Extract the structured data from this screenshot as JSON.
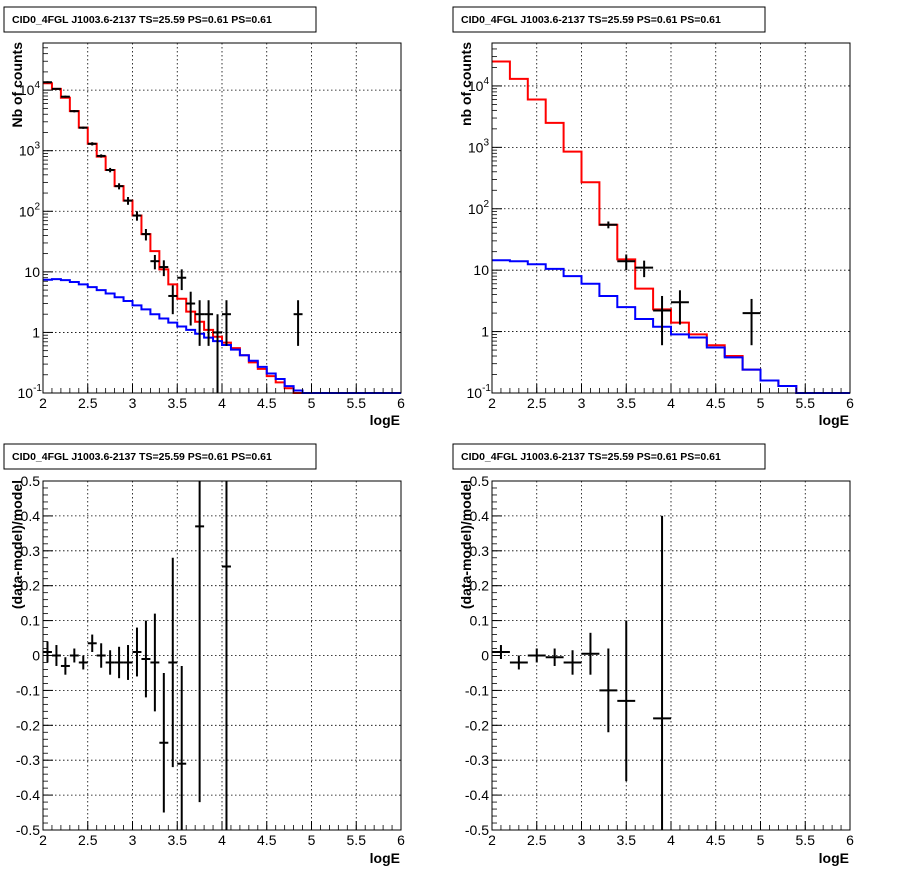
{
  "chart_data": [
    {
      "type": "histogram",
      "title": "CID0_4FGL J1003.6-2137 TS=25.59 PS=0.61 PS=0.61",
      "xlabel": "logE",
      "ylabel": "Nb of counts",
      "xlim": [
        2,
        6
      ],
      "ylim": [
        0.1,
        60000
      ],
      "log_y": true,
      "grid": true,
      "x_ticks": [
        "2",
        "2.5",
        "3",
        "3.5",
        "4",
        "4.5",
        "5",
        "5.5",
        "6"
      ],
      "y_ticks": [
        "10^-1",
        "1",
        "10",
        "10^2",
        "10^3",
        "10^4"
      ],
      "bin_edges": [
        2.0,
        2.1,
        2.2,
        2.3,
        2.4,
        2.5,
        2.6,
        2.7,
        2.8,
        2.9,
        3.0,
        3.1,
        3.2,
        3.3,
        3.4,
        3.5,
        3.6,
        3.7,
        3.8,
        3.9,
        4.0,
        4.1,
        4.2,
        4.3,
        4.4,
        4.5,
        4.6,
        4.7,
        4.8,
        4.9,
        5.0,
        5.1,
        5.2,
        5.3,
        5.4,
        5.5,
        5.6,
        5.7,
        5.8,
        5.9,
        6.0
      ],
      "series": [
        {
          "role": "total model",
          "color": "#ff0000",
          "values": [
            13000,
            10500,
            7500,
            4500,
            2400,
            1300,
            800,
            480,
            260,
            150,
            85,
            42,
            22,
            11,
            6.2,
            3.6,
            2.2,
            1.5,
            1.1,
            0.85,
            0.68,
            0.55,
            0.42,
            0.32,
            0.25,
            0.19,
            0.15,
            0.12,
            0.1,
            0.1,
            0.1,
            0.1,
            0.1,
            0.1,
            0.1,
            0.1,
            0.1,
            0.1,
            0.1,
            0.1
          ]
        },
        {
          "role": "background model",
          "color": "#0000ff",
          "values": [
            7.4,
            7.6,
            7.3,
            6.8,
            6.2,
            5.6,
            5.0,
            4.4,
            3.8,
            3.3,
            2.8,
            2.4,
            2.0,
            1.7,
            1.45,
            1.25,
            1.1,
            0.95,
            0.82,
            0.72,
            0.62,
            0.52,
            0.42,
            0.34,
            0.27,
            0.21,
            0.17,
            0.13,
            0.11,
            0.1,
            0.1,
            0.1,
            0.1,
            0.1,
            0.1,
            0.1,
            0.1,
            0.1,
            0.1,
            0.1
          ]
        },
        {
          "role": "data",
          "color": "#000000",
          "points": [
            {
              "x": 2.05,
              "y": 13500,
              "lo": 13000,
              "hi": 14000
            },
            {
              "x": 2.15,
              "y": 10500,
              "lo": 10200,
              "hi": 10800
            },
            {
              "x": 2.25,
              "y": 7800,
              "lo": 7500,
              "hi": 8100
            },
            {
              "x": 2.35,
              "y": 4500,
              "lo": 4300,
              "hi": 4700
            },
            {
              "x": 2.45,
              "y": 2400,
              "lo": 2300,
              "hi": 2500
            },
            {
              "x": 2.55,
              "y": 1300,
              "lo": 1220,
              "hi": 1380
            },
            {
              "x": 2.65,
              "y": 820,
              "lo": 770,
              "hi": 870
            },
            {
              "x": 2.75,
              "y": 480,
              "lo": 440,
              "hi": 520
            },
            {
              "x": 2.85,
              "y": 260,
              "lo": 230,
              "hi": 290
            },
            {
              "x": 2.95,
              "y": 150,
              "lo": 128,
              "hi": 172
            },
            {
              "x": 3.05,
              "y": 85,
              "lo": 70,
              "hi": 100
            },
            {
              "x": 3.15,
              "y": 42,
              "lo": 33,
              "hi": 51
            },
            {
              "x": 3.25,
              "y": 15,
              "lo": 11,
              "hi": 19
            },
            {
              "x": 3.35,
              "y": 12,
              "lo": 8.5,
              "hi": 15.5
            },
            {
              "x": 3.45,
              "y": 4,
              "lo": 2,
              "hi": 6
            },
            {
              "x": 3.55,
              "y": 8,
              "lo": 5,
              "hi": 11
            },
            {
              "x": 3.65,
              "y": 3,
              "lo": 1.3,
              "hi": 4.7
            },
            {
              "x": 3.75,
              "y": 2,
              "lo": 0.6,
              "hi": 3.4
            },
            {
              "x": 3.85,
              "y": 2,
              "lo": 0.6,
              "hi": 3.4
            },
            {
              "x": 3.95,
              "y": 1,
              "lo": 0.1,
              "hi": 2.0
            },
            {
              "x": 4.05,
              "y": 2,
              "lo": 0.6,
              "hi": 3.4
            },
            {
              "x": 4.85,
              "y": 2,
              "lo": 0.6,
              "hi": 3.4
            }
          ]
        }
      ]
    },
    {
      "type": "histogram",
      "title": "CID0_4FGL J1003.6-2137 TS=25.59 PS=0.61 PS=0.61",
      "xlabel": "logE",
      "ylabel": "nb of counts",
      "xlim": [
        2,
        6
      ],
      "ylim": [
        0.1,
        50000
      ],
      "log_y": true,
      "grid": true,
      "x_ticks": [
        "2",
        "2.5",
        "3",
        "3.5",
        "4",
        "4.5",
        "5",
        "5.5",
        "6"
      ],
      "y_ticks": [
        "10^-1",
        "1",
        "10",
        "10^2",
        "10^3",
        "10^4"
      ],
      "bin_edges": [
        2.0,
        2.2,
        2.4,
        2.6,
        2.8,
        3.0,
        3.2,
        3.4,
        3.6,
        3.8,
        4.0,
        4.2,
        4.4,
        4.6,
        4.8,
        5.0,
        5.2,
        5.4,
        5.6,
        5.8,
        6.0
      ],
      "series": [
        {
          "role": "total model",
          "color": "#ff0000",
          "values": [
            25000,
            13000,
            6000,
            2500,
            850,
            270,
            55,
            15,
            5,
            2.3,
            1.4,
            0.9,
            0.6,
            0.4,
            0.24,
            0.16,
            0.13,
            0.1,
            0.1,
            0.1
          ]
        },
        {
          "role": "background model",
          "color": "#0000ff",
          "values": [
            14.5,
            14,
            12.5,
            10.5,
            8,
            6,
            3.8,
            2.5,
            1.6,
            1.2,
            0.9,
            0.8,
            0.55,
            0.38,
            0.24,
            0.16,
            0.13,
            0.1,
            0.1,
            0.1
          ]
        },
        {
          "role": "data",
          "color": "#000000",
          "points": [
            {
              "x": 3.3,
              "y": 55,
              "lo": 48,
              "hi": 62
            },
            {
              "x": 3.5,
              "y": 14,
              "lo": 10,
              "hi": 18
            },
            {
              "x": 3.7,
              "y": 11,
              "lo": 7.7,
              "hi": 14.3
            },
            {
              "x": 3.9,
              "y": 2.2,
              "lo": 0.6,
              "hi": 3.8
            },
            {
              "x": 4.1,
              "y": 3,
              "lo": 1.3,
              "hi": 4.7
            },
            {
              "x": 4.9,
              "y": 2,
              "lo": 0.6,
              "hi": 3.4
            }
          ]
        }
      ]
    },
    {
      "type": "scatter",
      "title": "CID0_4FGL J1003.6-2137 TS=25.59 PS=0.61 PS=0.61",
      "xlabel": "logE",
      "ylabel": "(data-model)/model",
      "xlim": [
        2,
        6
      ],
      "ylim": [
        -0.5,
        0.5
      ],
      "grid": true,
      "x_ticks": [
        "2",
        "2.5",
        "3",
        "3.5",
        "4",
        "4.5",
        "5",
        "5.5",
        "6"
      ],
      "y_ticks": [
        "-0.5",
        "-0.4",
        "-0.3",
        "-0.2",
        "-0.1",
        "0",
        "0.1",
        "0.2",
        "0.3",
        "0.4",
        "0.5"
      ],
      "points": [
        {
          "x": 2.05,
          "y": 0.01,
          "err": 0.03
        },
        {
          "x": 2.15,
          "y": 0.0,
          "err": 0.03
        },
        {
          "x": 2.25,
          "y": -0.03,
          "err": 0.025
        },
        {
          "x": 2.35,
          "y": 0.0,
          "err": 0.02
        },
        {
          "x": 2.45,
          "y": -0.02,
          "err": 0.02
        },
        {
          "x": 2.55,
          "y": 0.035,
          "err": 0.025
        },
        {
          "x": 2.65,
          "y": 0.0,
          "err": 0.035
        },
        {
          "x": 2.75,
          "y": -0.02,
          "err": 0.035
        },
        {
          "x": 2.85,
          "y": -0.02,
          "err": 0.045
        },
        {
          "x": 2.95,
          "y": -0.02,
          "err": 0.05
        },
        {
          "x": 3.05,
          "y": 0.01,
          "err": 0.07
        },
        {
          "x": 3.15,
          "y": -0.01,
          "err": 0.11
        },
        {
          "x": 3.25,
          "y": -0.02,
          "err": 0.14
        },
        {
          "x": 3.35,
          "y": -0.25,
          "err": 0.2
        },
        {
          "x": 3.45,
          "y": -0.02,
          "err": 0.3
        },
        {
          "x": 3.55,
          "y": -0.31,
          "err": 0.28
        },
        {
          "x": 3.75,
          "y": 0.37,
          "err": 0.79
        },
        {
          "x": 4.05,
          "y": 0.255,
          "err": 0.8
        }
      ]
    },
    {
      "type": "scatter",
      "title": "CID0_4FGL J1003.6-2137 TS=25.59 PS=0.61 PS=0.61",
      "xlabel": "logE",
      "ylabel": "(data-model)/model",
      "xlim": [
        2,
        6
      ],
      "ylim": [
        -0.5,
        0.5
      ],
      "grid": true,
      "x_ticks": [
        "2",
        "2.5",
        "3",
        "3.5",
        "4",
        "4.5",
        "5",
        "5.5",
        "6"
      ],
      "y_ticks": [
        "-0.5",
        "-0.4",
        "-0.3",
        "-0.2",
        "-0.1",
        "0",
        "0.1",
        "0.2",
        "0.3",
        "0.4",
        "0.5"
      ],
      "points": [
        {
          "x": 2.1,
          "y": 0.01,
          "err": 0.02
        },
        {
          "x": 2.3,
          "y": -0.02,
          "err": 0.02
        },
        {
          "x": 2.5,
          "y": 0.0,
          "err": 0.02
        },
        {
          "x": 2.7,
          "y": -0.005,
          "err": 0.025
        },
        {
          "x": 2.9,
          "y": -0.02,
          "err": 0.035
        },
        {
          "x": 3.1,
          "y": 0.005,
          "err": 0.06
        },
        {
          "x": 3.3,
          "y": -0.1,
          "err": 0.12
        },
        {
          "x": 3.5,
          "y": -0.13,
          "err": 0.23
        },
        {
          "x": 3.9,
          "y": -0.18,
          "err": 0.58
        }
      ]
    }
  ]
}
